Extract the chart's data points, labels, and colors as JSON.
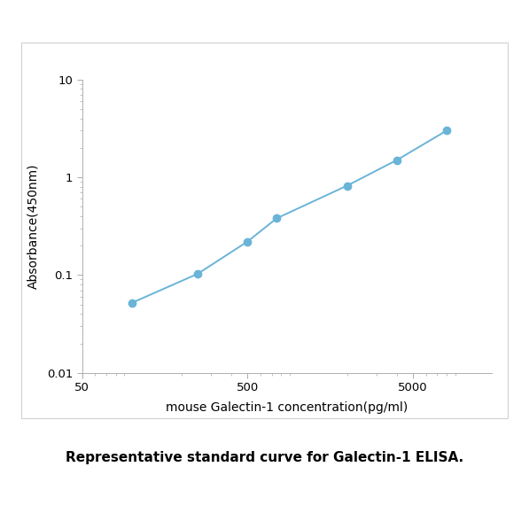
{
  "x_data": [
    100,
    250,
    500,
    750,
    2000,
    4000,
    8000
  ],
  "y_data": [
    0.052,
    0.103,
    0.22,
    0.38,
    0.82,
    1.5,
    3.0
  ],
  "line_color": "#6ab4d8",
  "marker_color": "#6ab4d8",
  "marker_size": 6,
  "line_width": 1.4,
  "xlabel": "mouse Galectin-1 concentration(pg/ml)",
  "ylabel": "Absorbance(450nm)",
  "xlim": [
    50,
    15000
  ],
  "ylim": [
    0.01,
    10
  ],
  "x_ticks": [
    50,
    500,
    5000
  ],
  "x_tick_labels": [
    "50",
    "500",
    "5000"
  ],
  "y_ticks": [
    0.01,
    0.1,
    1,
    10
  ],
  "y_tick_labels": [
    "0.01",
    "0.1",
    "1",
    "10"
  ],
  "caption": "Representative standard curve for Galectin-1 ELISA.",
  "caption_fontsize": 11,
  "axis_label_fontsize": 10,
  "tick_fontsize": 9.5,
  "figure_bg": "#ffffff",
  "plot_bg": "#ffffff",
  "box_border_color": "#d0d0d0",
  "spine_color": "#b0b0b0",
  "tick_color": "#aaaaaa"
}
